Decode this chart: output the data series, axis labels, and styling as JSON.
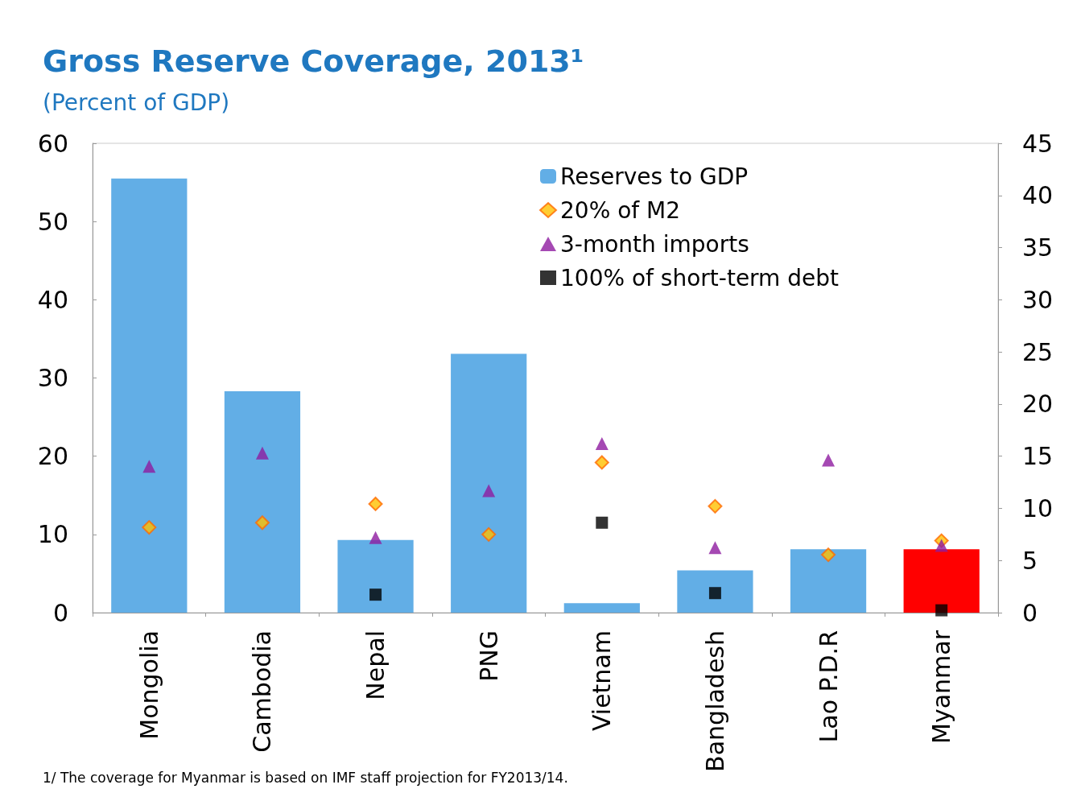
{
  "chart_data": {
    "type": "bar",
    "title": "Gross Reserve Coverage, 2013¹",
    "subtitle": "(Percent of GDP)",
    "categories": [
      "Mongolia",
      "Cambodia",
      "Nepal",
      "PNG",
      "Vietnam",
      "Bangladesh",
      "Lao P.D.R",
      "Myanmar"
    ],
    "series": [
      {
        "name": "Reserves to GDP",
        "color": "#62aee6",
        "colors": [
          "#62aee6",
          "#62aee6",
          "#62aee6",
          "#62aee6",
          "#62aee6",
          "#62aee6",
          "#62aee6",
          "#ff0000"
        ],
        "values": [
          55.5,
          28.3,
          9.3,
          33.1,
          1.2,
          5.4,
          8.1,
          8.1
        ]
      },
      {
        "name": "20% of M2",
        "type": "scatter",
        "marker": "diamond",
        "color": "#ffc000",
        "values": [
          10.9,
          11.5,
          13.9,
          10.0,
          19.2,
          13.6,
          7.4,
          9.2
        ]
      },
      {
        "name": "3-month imports",
        "type": "scatter",
        "marker": "triangle",
        "color": "#8e1ba0",
        "values": [
          18.7,
          20.4,
          9.6,
          15.6,
          21.6,
          8.3,
          19.5,
          8.6
        ]
      },
      {
        "name": "100% of short-term debt",
        "type": "scatter",
        "marker": "square",
        "color": "#000000",
        "values": [
          null,
          null,
          2.3,
          null,
          11.5,
          2.5,
          null,
          0.3
        ]
      }
    ],
    "ylim": [
      0,
      60
    ],
    "yticks": [
      0,
      10,
      20,
      30,
      40,
      50,
      60
    ],
    "y2lim": [
      0,
      45
    ],
    "y2ticks": [
      0,
      5,
      10,
      15,
      20,
      25,
      30,
      35,
      40,
      45
    ],
    "grid": false,
    "legend": "top right",
    "annotations": [
      "1/ The coverage for Myanmar is based on IMF staff projection for FY2013/14."
    ]
  }
}
